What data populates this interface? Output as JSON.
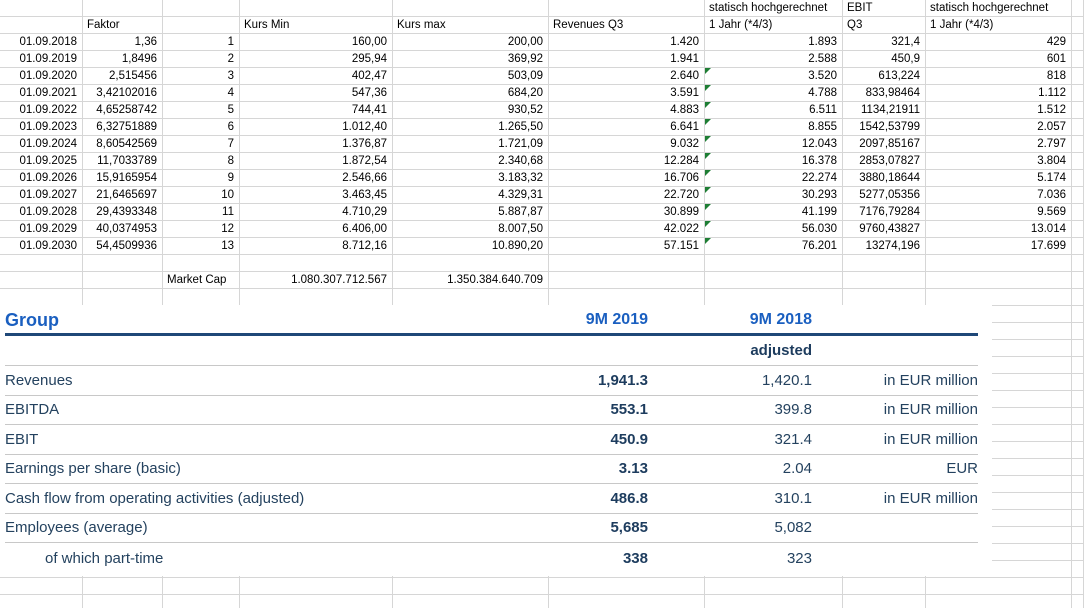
{
  "sheet": {
    "headers_line1": {
      "g": "statisch hochgerechnet",
      "h": "EBIT",
      "i": "statisch hochgerechnet"
    },
    "headers_line2": {
      "b": "Faktor",
      "d": "Kurs Min",
      "e": "Kurs max",
      "f": "Revenues Q3",
      "g": "1 Jahr (*4/3)",
      "h": "Q3",
      "i": "1 Jahr (*4/3)"
    },
    "data_rows": [
      {
        "date": "01.09.2018",
        "faktor": "1,36",
        "n": "1",
        "kurs_min": "160,00",
        "kurs_max": "200,00",
        "revenues_q3": "1.420",
        "revenues_1jahr": "1.893",
        "ebit_q3": "321,4",
        "ebit_1jahr": "429",
        "flag": false
      },
      {
        "date": "01.09.2019",
        "faktor": "1,8496",
        "n": "2",
        "kurs_min": "295,94",
        "kurs_max": "369,92",
        "revenues_q3": "1.941",
        "revenues_1jahr": "2.588",
        "ebit_q3": "450,9",
        "ebit_1jahr": "601",
        "flag": false
      },
      {
        "date": "01.09.2020",
        "faktor": "2,515456",
        "n": "3",
        "kurs_min": "402,47",
        "kurs_max": "503,09",
        "revenues_q3": "2.640",
        "revenues_1jahr": "3.520",
        "ebit_q3": "613,224",
        "ebit_1jahr": "818",
        "flag": true
      },
      {
        "date": "01.09.2021",
        "faktor": "3,42102016",
        "n": "4",
        "kurs_min": "547,36",
        "kurs_max": "684,20",
        "revenues_q3": "3.591",
        "revenues_1jahr": "4.788",
        "ebit_q3": "833,98464",
        "ebit_1jahr": "1.112",
        "flag": true
      },
      {
        "date": "01.09.2022",
        "faktor": "4,65258742",
        "n": "5",
        "kurs_min": "744,41",
        "kurs_max": "930,52",
        "revenues_q3": "4.883",
        "revenues_1jahr": "6.511",
        "ebit_q3": "1134,21911",
        "ebit_1jahr": "1.512",
        "flag": true
      },
      {
        "date": "01.09.2023",
        "faktor": "6,32751889",
        "n": "6",
        "kurs_min": "1.012,40",
        "kurs_max": "1.265,50",
        "revenues_q3": "6.641",
        "revenues_1jahr": "8.855",
        "ebit_q3": "1542,53799",
        "ebit_1jahr": "2.057",
        "flag": true
      },
      {
        "date": "01.09.2024",
        "faktor": "8,60542569",
        "n": "7",
        "kurs_min": "1.376,87",
        "kurs_max": "1.721,09",
        "revenues_q3": "9.032",
        "revenues_1jahr": "12.043",
        "ebit_q3": "2097,85167",
        "ebit_1jahr": "2.797",
        "flag": true
      },
      {
        "date": "01.09.2025",
        "faktor": "11,7033789",
        "n": "8",
        "kurs_min": "1.872,54",
        "kurs_max": "2.340,68",
        "revenues_q3": "12.284",
        "revenues_1jahr": "16.378",
        "ebit_q3": "2853,07827",
        "ebit_1jahr": "3.804",
        "flag": true
      },
      {
        "date": "01.09.2026",
        "faktor": "15,9165954",
        "n": "9",
        "kurs_min": "2.546,66",
        "kurs_max": "3.183,32",
        "revenues_q3": "16.706",
        "revenues_1jahr": "22.274",
        "ebit_q3": "3880,18644",
        "ebit_1jahr": "5.174",
        "flag": true
      },
      {
        "date": "01.09.2027",
        "faktor": "21,6465697",
        "n": "10",
        "kurs_min": "3.463,45",
        "kurs_max": "4.329,31",
        "revenues_q3": "22.720",
        "revenues_1jahr": "30.293",
        "ebit_q3": "5277,05356",
        "ebit_1jahr": "7.036",
        "flag": true
      },
      {
        "date": "01.09.2028",
        "faktor": "29,4393348",
        "n": "11",
        "kurs_min": "4.710,29",
        "kurs_max": "5.887,87",
        "revenues_q3": "30.899",
        "revenues_1jahr": "41.199",
        "ebit_q3": "7176,79284",
        "ebit_1jahr": "9.569",
        "flag": true
      },
      {
        "date": "01.09.2029",
        "faktor": "40,0374953",
        "n": "12",
        "kurs_min": "6.406,00",
        "kurs_max": "8.007,50",
        "revenues_q3": "42.022",
        "revenues_1jahr": "56.030",
        "ebit_q3": "9760,43827",
        "ebit_1jahr": "13.014",
        "flag": true
      },
      {
        "date": "01.09.2030",
        "faktor": "54,4509936",
        "n": "13",
        "kurs_min": "8.712,16",
        "kurs_max": "10.890,20",
        "revenues_q3": "57.151",
        "revenues_1jahr": "76.201",
        "ebit_q3": "13274,196",
        "ebit_1jahr": "17.699",
        "flag": true
      }
    ],
    "market_cap_row": {
      "label": "Market Cap",
      "kurs_min": "1.080.307.712.567",
      "kurs_max": "1.350.384.640.709"
    },
    "colors": {
      "gridline": "#d6d6d6",
      "flag_green": "#1e7e34",
      "text": "#000000"
    }
  },
  "report": {
    "title": "Group",
    "col_2019": "9M 2019",
    "col_2018": "9M 2018",
    "adjusted_label": "adjusted",
    "rows": [
      {
        "label": "Revenues",
        "v2019": "1,941.3",
        "v2018": "1,420.1",
        "unit": "in EUR million",
        "indent": false
      },
      {
        "label": "EBITDA",
        "v2019": "553.1",
        "v2018": "399.8",
        "unit": "in EUR million",
        "indent": false
      },
      {
        "label": "EBIT",
        "v2019": "450.9",
        "v2018": "321.4",
        "unit": "in EUR million",
        "indent": false
      },
      {
        "label": "Earnings per share (basic)",
        "v2019": "3.13",
        "v2018": "2.04",
        "unit": "EUR",
        "indent": false
      },
      {
        "label": "Cash flow from operating activities (adjusted)",
        "v2019": "486.8",
        "v2018": "310.1",
        "unit": "in EUR million",
        "indent": false
      },
      {
        "label": "Employees (average)",
        "v2019": "5,685",
        "v2018": "5,082",
        "unit": "",
        "indent": false
      },
      {
        "label": "of which part-time",
        "v2019": "338",
        "v2018": "323",
        "unit": "",
        "indent": true
      }
    ],
    "colors": {
      "accent_blue": "#1a5fc0",
      "rule_navy": "#1f4878",
      "text_navy": "#24425f",
      "separator": "#c8c8c8"
    }
  }
}
